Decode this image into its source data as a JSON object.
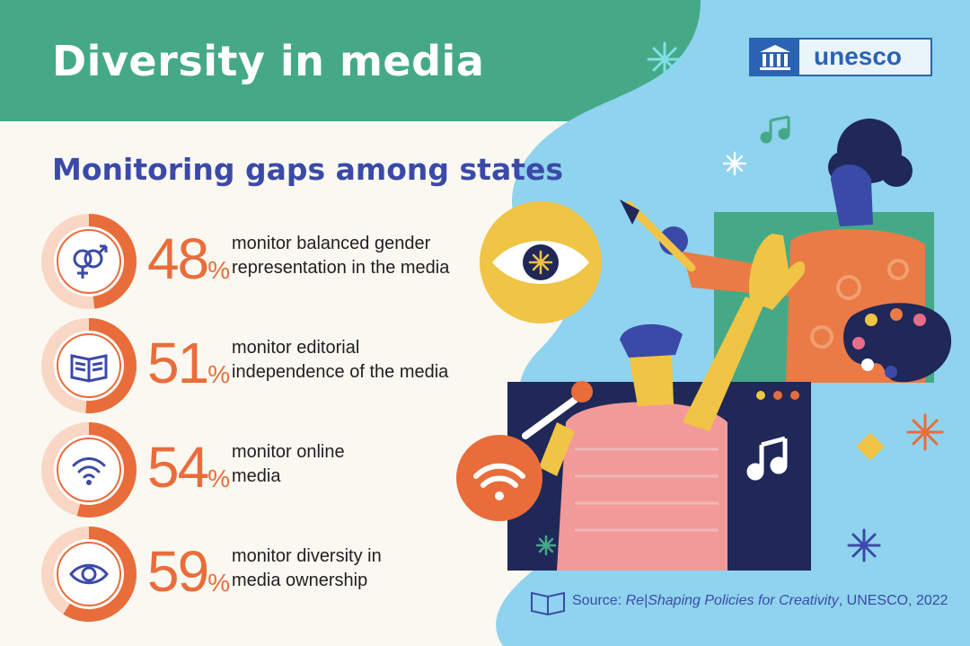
{
  "header": {
    "title": "Diversity in media"
  },
  "subtitle": "Monitoring gaps among states",
  "logo": {
    "text": "unesco",
    "icon": "temple-icon"
  },
  "stats": [
    {
      "value": "48",
      "unit": "%",
      "fraction": 0.48,
      "desc_line1": "monitor balanced gender",
      "desc_line2": "representation in the media",
      "icon": "gender-symbols-icon"
    },
    {
      "value": "51",
      "unit": "%",
      "fraction": 0.51,
      "desc_line1": "monitor editorial",
      "desc_line2": "independence of the media",
      "icon": "open-book-icon"
    },
    {
      "value": "54",
      "unit": "%",
      "fraction": 0.54,
      "desc_line1": "monitor online",
      "desc_line2": "media",
      "icon": "wifi-icon"
    },
    {
      "value": "59",
      "unit": "%",
      "fraction": 0.59,
      "desc_line1": "monitor diversity in",
      "desc_line2": "media ownership",
      "icon": "eye-icon"
    }
  ],
  "source": {
    "prefix": "Source: ",
    "title": "Re|Shaping Policies for Creativity",
    "suffix": ", UNESCO, 2022",
    "icon": "open-book-icon"
  },
  "colors": {
    "header_green": "#45a987",
    "title_blue": "#3b4aa8",
    "accent_orange": "#e86d3b",
    "ring_pale": "#f9d7c4",
    "sky_blue": "#8fd3ef",
    "unesco_blue": "#2b63b3"
  }
}
